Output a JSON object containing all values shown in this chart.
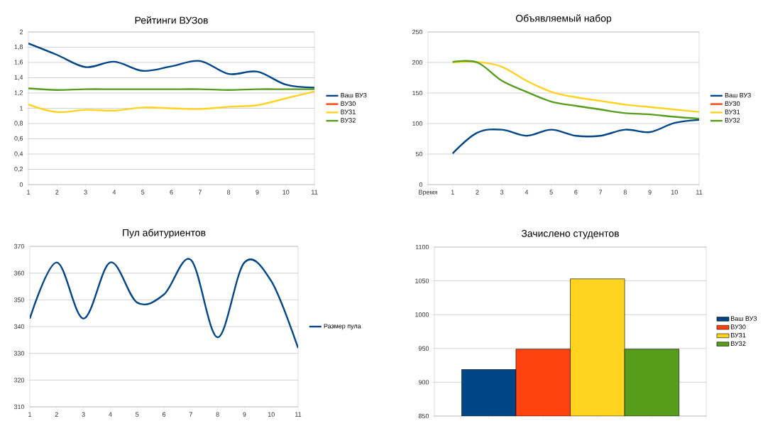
{
  "chart_data": [
    {
      "type": "line",
      "title": "Рейтинги ВУЗов",
      "categories": [
        "1",
        "2",
        "3",
        "4",
        "5",
        "6",
        "7",
        "8",
        "9",
        "10",
        "11"
      ],
      "ylim": [
        0,
        2
      ],
      "yticks": [
        0,
        {
          "value": 0.2,
          "label": "0,2"
        },
        {
          "value": 0.4,
          "label": "0,4"
        },
        {
          "value": 0.6,
          "label": "0,6"
        },
        {
          "value": 0.8,
          "label": "0,8"
        },
        1,
        {
          "value": 1.2,
          "label": "1,2"
        },
        {
          "value": 1.4,
          "label": "1,4"
        },
        {
          "value": 1.6,
          "label": "1,6"
        },
        {
          "value": 1.8,
          "label": "1,8"
        },
        2
      ],
      "grid": "y",
      "legend": "right",
      "series": [
        {
          "name": "Ваш ВУЗ",
          "color": "#004586",
          "values": [
            1.85,
            1.7,
            1.54,
            1.61,
            1.49,
            1.55,
            1.62,
            1.45,
            1.48,
            1.31,
            1.27
          ]
        },
        {
          "name": "ВУЗ0",
          "color": "#ff420e",
          "values": [
            null,
            null,
            null,
            null,
            null,
            null,
            null,
            null,
            null,
            null,
            null
          ]
        },
        {
          "name": "ВУЗ1",
          "color": "#ffd320",
          "values": [
            1.05,
            0.95,
            0.98,
            0.97,
            1.01,
            1.0,
            0.99,
            1.02,
            1.04,
            1.13,
            1.22
          ]
        },
        {
          "name": "ВУЗ2",
          "color": "#579d1c",
          "values": [
            1.26,
            1.24,
            1.25,
            1.25,
            1.25,
            1.25,
            1.25,
            1.24,
            1.25,
            1.25,
            1.25
          ]
        }
      ]
    },
    {
      "type": "line",
      "title": "Объявляемый набор",
      "categories": [
        "Время",
        "1",
        "2",
        "3",
        "4",
        "5",
        "6",
        "7",
        "8",
        "9",
        "10",
        "11"
      ],
      "ylim": [
        0,
        250
      ],
      "yticks": [
        0,
        50,
        100,
        150,
        200,
        250
      ],
      "grid": "y",
      "legend": "right",
      "series": [
        {
          "name": "Ваш ВУЗ",
          "color": "#004586",
          "values": [
            null,
            51,
            85,
            90,
            80,
            90,
            80,
            80,
            90,
            86,
            101,
            106
          ]
        },
        {
          "name": "ВУЗ0",
          "color": "#ff420e",
          "values": [
            null,
            null,
            null,
            null,
            null,
            null,
            null,
            null,
            null,
            null,
            null,
            null
          ]
        },
        {
          "name": "ВУЗ1",
          "color": "#ffd320",
          "values": [
            null,
            200,
            201,
            193,
            170,
            152,
            143,
            137,
            131,
            127,
            123,
            119
          ]
        },
        {
          "name": "ВУЗ2",
          "color": "#579d1c",
          "values": [
            null,
            201,
            200,
            170,
            152,
            136,
            129,
            123,
            117,
            115,
            111,
            108
          ]
        }
      ]
    },
    {
      "type": "line",
      "title": "Пул абитуриентов",
      "categories": [
        "1",
        "2",
        "3",
        "4",
        "5",
        "6",
        "7",
        "8",
        "9",
        "10",
        "11"
      ],
      "ylim": [
        310,
        370
      ],
      "yticks": [
        310,
        320,
        330,
        340,
        350,
        360,
        370
      ],
      "grid": "y",
      "legend": "right",
      "series": [
        {
          "name": "Размер пула",
          "color": "#004586",
          "values": [
            343,
            364,
            343,
            364,
            349,
            352,
            365,
            336,
            364,
            357,
            332
          ]
        }
      ]
    },
    {
      "type": "bar",
      "title": "Зачислено студентов",
      "categories": [
        null
      ],
      "ylim": [
        850,
        1100
      ],
      "yticks": [
        850,
        900,
        950,
        1000,
        1050,
        1100
      ],
      "grid": "y",
      "legend": "right",
      "series": [
        {
          "name": "Ваш ВУЗ",
          "color": "#004586",
          "values": [
            919
          ]
        },
        {
          "name": "ВУЗ0",
          "color": "#ff420e",
          "values": [
            949
          ]
        },
        {
          "name": "ВУЗ1",
          "color": "#ffd320",
          "values": [
            1053
          ]
        },
        {
          "name": "ВУЗ2",
          "color": "#579d1c",
          "values": [
            949
          ]
        }
      ]
    }
  ]
}
